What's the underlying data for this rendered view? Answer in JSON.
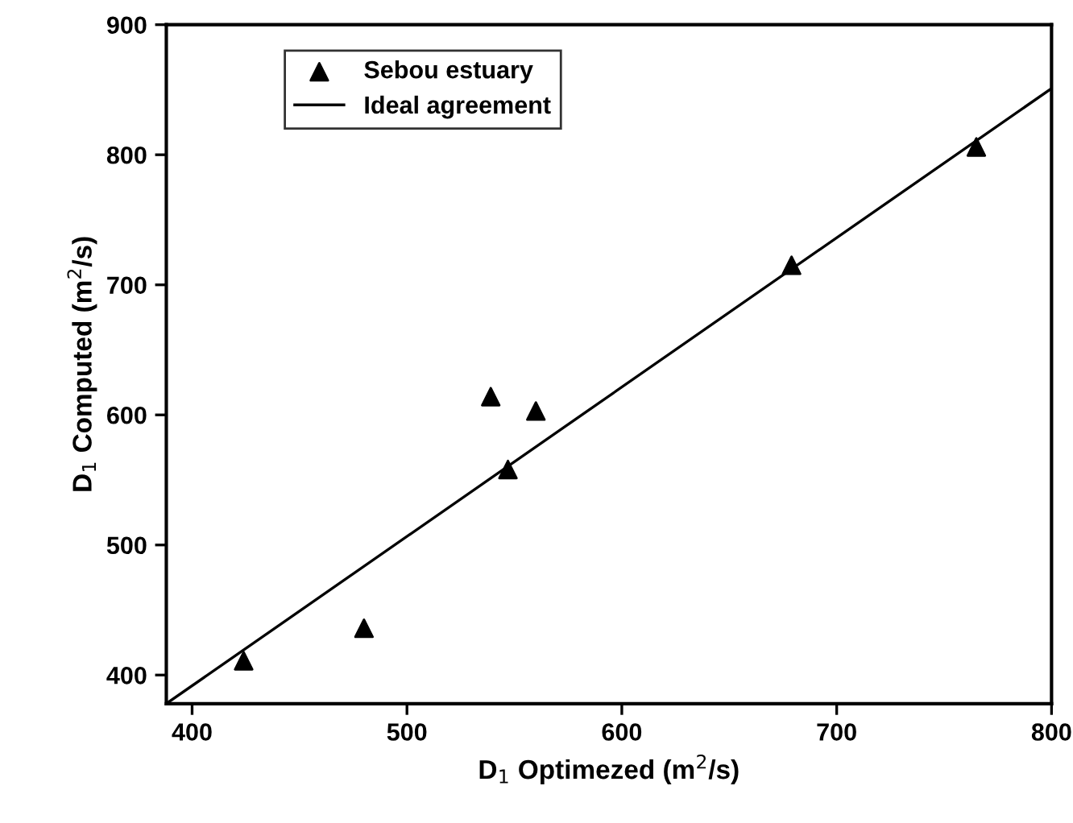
{
  "chart_data": {
    "type": "scatter",
    "xlabel": "D$_{1}$ Optimezed (m$^{2}$/s)",
    "ylabel": "D$_{1}$ Computed (m$^{2}$/s)",
    "xlim": [
      388,
      800
    ],
    "ylim": [
      378,
      900
    ],
    "xticks": [
      400,
      500,
      600,
      700,
      800
    ],
    "yticks": [
      400,
      500,
      600,
      700,
      800,
      900
    ],
    "grid": false,
    "legend": "top left",
    "series": [
      {
        "name": "Sebou estuary",
        "color": "#000000",
        "marker": "triangle",
        "x": [
          424,
          480,
          539,
          560,
          547,
          679,
          765
        ],
        "values": [
          411,
          436,
          614,
          603,
          558,
          715,
          806
        ]
      },
      {
        "name": "Ideal agreement",
        "type": "line",
        "color": "#000000",
        "marker": "none",
        "line_style": "solid",
        "x": [
          388,
          800
        ],
        "values": [
          378,
          851
        ]
      }
    ]
  }
}
